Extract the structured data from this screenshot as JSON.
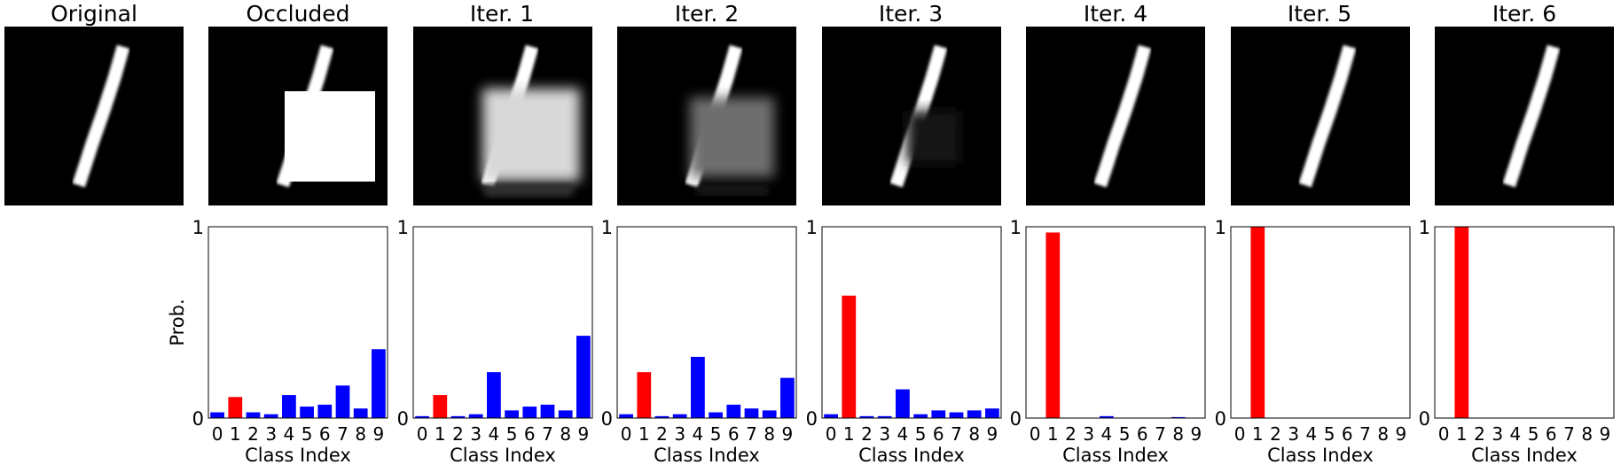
{
  "panel_titles": [
    "Original",
    "Occluded",
    "Iter. 1",
    "Iter. 2",
    "Iter. 3",
    "Iter. 4",
    "Iter. 5",
    "Iter. 6"
  ],
  "colors": {
    "predicted_bar": "#ff0000",
    "other_bar": "#0000ff",
    "image_background": "#000000",
    "occluder": "#ffffff"
  },
  "chart_data": [
    {
      "type": "bar",
      "panel": "Occluded",
      "categories": [
        "0",
        "1",
        "2",
        "3",
        "4",
        "5",
        "6",
        "7",
        "8",
        "9"
      ],
      "values": [
        0.03,
        0.11,
        0.03,
        0.02,
        0.12,
        0.06,
        0.07,
        0.17,
        0.05,
        0.36
      ],
      "highlight_index": 1,
      "xlabel": "Class Index",
      "ylabel": "Prob.",
      "ylim": [
        0,
        1
      ],
      "ytick_labels": [
        "0",
        "1"
      ]
    },
    {
      "type": "bar",
      "panel": "Iter. 1",
      "categories": [
        "0",
        "1",
        "2",
        "3",
        "4",
        "5",
        "6",
        "7",
        "8",
        "9"
      ],
      "values": [
        0.01,
        0.12,
        0.01,
        0.02,
        0.24,
        0.04,
        0.06,
        0.07,
        0.04,
        0.43
      ],
      "highlight_index": 1,
      "xlabel": "Class Index",
      "ylabel": "",
      "ylim": [
        0,
        1
      ],
      "ytick_labels": [
        "0",
        "1"
      ]
    },
    {
      "type": "bar",
      "panel": "Iter. 2",
      "categories": [
        "0",
        "1",
        "2",
        "3",
        "4",
        "5",
        "6",
        "7",
        "8",
        "9"
      ],
      "values": [
        0.02,
        0.24,
        0.01,
        0.02,
        0.32,
        0.03,
        0.07,
        0.05,
        0.04,
        0.21
      ],
      "highlight_index": 1,
      "xlabel": "Class Index",
      "ylabel": "",
      "ylim": [
        0,
        1
      ],
      "ytick_labels": [
        "0",
        "1"
      ]
    },
    {
      "type": "bar",
      "panel": "Iter. 3",
      "categories": [
        "0",
        "1",
        "2",
        "3",
        "4",
        "5",
        "6",
        "7",
        "8",
        "9"
      ],
      "values": [
        0.02,
        0.64,
        0.01,
        0.01,
        0.15,
        0.02,
        0.04,
        0.03,
        0.04,
        0.05
      ],
      "highlight_index": 1,
      "xlabel": "Class Index",
      "ylabel": "",
      "ylim": [
        0,
        1
      ],
      "ytick_labels": [
        "0",
        "1"
      ]
    },
    {
      "type": "bar",
      "panel": "Iter. 4",
      "categories": [
        "0",
        "1",
        "2",
        "3",
        "4",
        "5",
        "6",
        "7",
        "8",
        "9"
      ],
      "values": [
        0.0,
        0.97,
        0.0,
        0.0,
        0.01,
        0.0,
        0.0,
        0.0,
        0.005,
        0.0
      ],
      "highlight_index": 1,
      "xlabel": "Class Index",
      "ylabel": "",
      "ylim": [
        0,
        1
      ],
      "ytick_labels": [
        "0",
        "1"
      ]
    },
    {
      "type": "bar",
      "panel": "Iter. 5",
      "categories": [
        "0",
        "1",
        "2",
        "3",
        "4",
        "5",
        "6",
        "7",
        "8",
        "9"
      ],
      "values": [
        0.0,
        1.0,
        0.0,
        0.0,
        0.0,
        0.0,
        0.0,
        0.0,
        0.0,
        0.0
      ],
      "highlight_index": 1,
      "xlabel": "Class Index",
      "ylabel": "",
      "ylim": [
        0,
        1
      ],
      "ytick_labels": [
        "0",
        "1"
      ]
    },
    {
      "type": "bar",
      "panel": "Iter. 6",
      "categories": [
        "0",
        "1",
        "2",
        "3",
        "4",
        "5",
        "6",
        "7",
        "8",
        "9"
      ],
      "values": [
        0.0,
        1.0,
        0.0,
        0.0,
        0.0,
        0.0,
        0.0,
        0.0,
        0.0,
        0.0
      ],
      "highlight_index": 1,
      "xlabel": "Class Index",
      "ylabel": "",
      "ylim": [
        0,
        1
      ],
      "ytick_labels": [
        "0",
        "1"
      ]
    }
  ]
}
